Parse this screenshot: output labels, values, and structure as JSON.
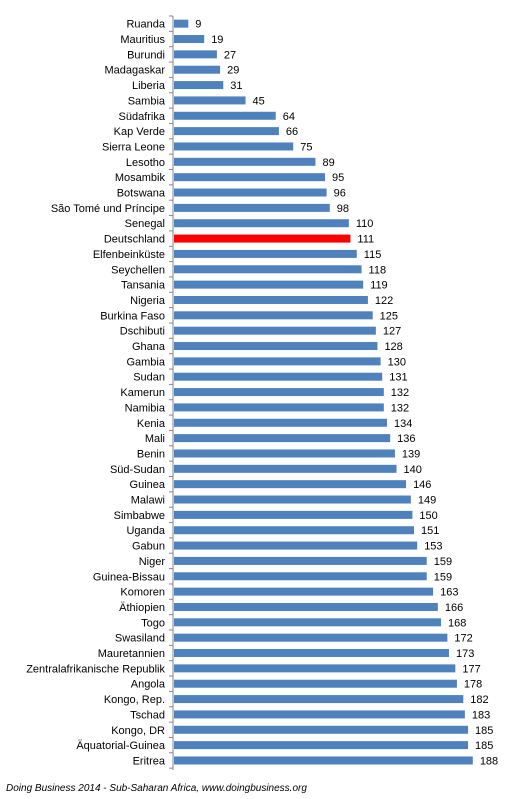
{
  "chart_data": {
    "type": "bar",
    "orientation": "horizontal",
    "categories": [
      "Ruanda",
      "Mauritius",
      "Burundi",
      "Madagaskar",
      "Liberia",
      "Sambia",
      "Südafrika",
      "Kap Verde",
      "Sierra Leone",
      "Lesotho",
      "Mosambik",
      "Botswana",
      "São Tomé und Príncipe",
      "Senegal",
      "Deutschland",
      "Elfenbeinküste",
      "Seychellen",
      "Tansania",
      "Nigeria",
      "Burkina Faso",
      "Dschibuti",
      "Ghana",
      "Gambia",
      "Sudan",
      "Kamerun",
      "Namibia",
      "Kenia",
      "Mali",
      "Benin",
      "Süd-Sudan",
      "Guinea",
      "Malawi",
      "Simbabwe",
      "Uganda",
      "Gabun",
      "Niger",
      "Guinea-Bissau",
      "Komoren",
      "Äthiopien",
      "Togo",
      "Swasiland",
      "Mauretannien",
      "Zentralafrikanische Republik",
      "Angola",
      "Kongo, Rep.",
      "Tschad",
      "Kongo, DR",
      "Äquatorial-Guinea",
      "Eritrea"
    ],
    "values": [
      9,
      19,
      27,
      29,
      31,
      45,
      64,
      66,
      75,
      89,
      95,
      96,
      98,
      110,
      111,
      115,
      118,
      119,
      122,
      125,
      127,
      128,
      130,
      131,
      132,
      132,
      134,
      136,
      139,
      140,
      146,
      149,
      150,
      151,
      153,
      159,
      159,
      163,
      166,
      168,
      172,
      173,
      177,
      178,
      182,
      183,
      185,
      185,
      188
    ],
    "highlight": "Deutschland",
    "colors": {
      "bar": "#4f81bd",
      "highlight": "#ff0000"
    },
    "grid": false,
    "legend": "none",
    "xlim": [
      0,
      190
    ]
  },
  "source": "Doing Business 2014 - Sub-Saharan Africa, www.doingbusiness.org"
}
